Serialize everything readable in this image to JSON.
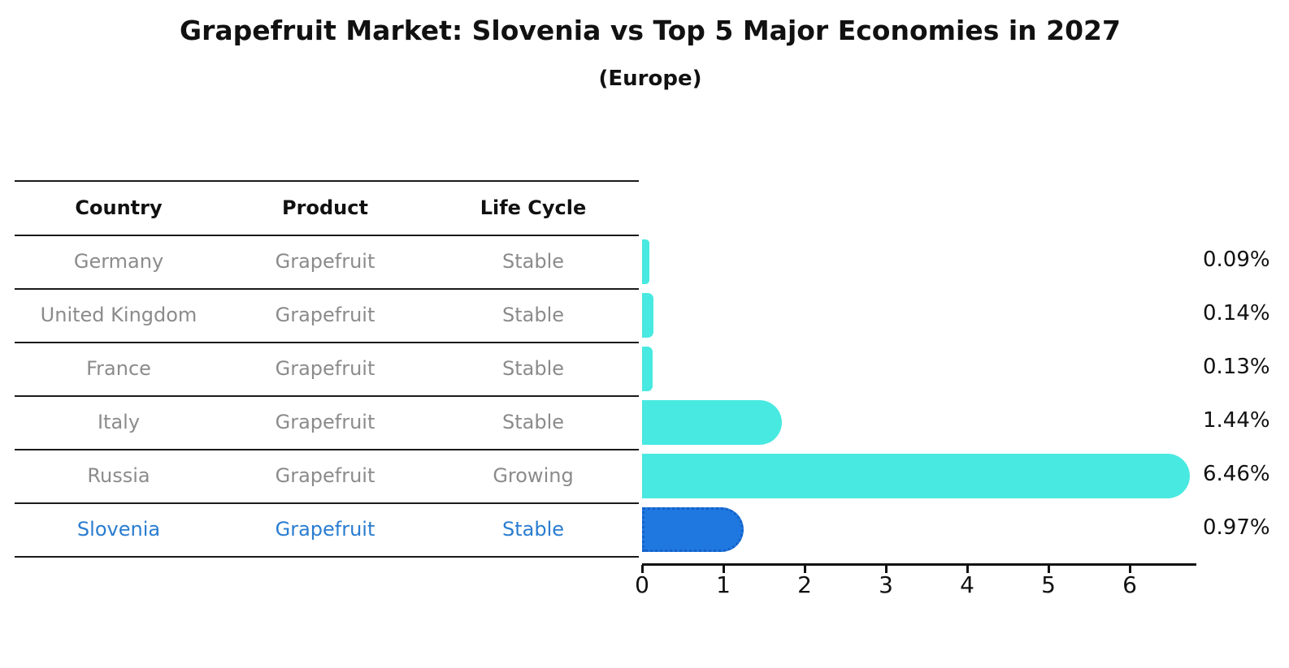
{
  "title": "Grapefruit Market: Slovenia vs Top 5 Major Economies in 2027",
  "subtitle": "(Europe)",
  "table": {
    "headers": [
      "Country",
      "Product",
      "Life Cycle"
    ],
    "rows": [
      {
        "country": "Germany",
        "product": "Grapefruit",
        "life_cycle": "Stable",
        "highlight": false
      },
      {
        "country": "United Kingdom",
        "product": "Grapefruit",
        "life_cycle": "Stable",
        "highlight": false
      },
      {
        "country": "France",
        "product": "Grapefruit",
        "life_cycle": "Stable",
        "highlight": false
      },
      {
        "country": "Italy",
        "product": "Grapefruit",
        "life_cycle": "Stable",
        "highlight": false
      },
      {
        "country": "Russia",
        "product": "Grapefruit",
        "life_cycle": "Growing",
        "highlight": false
      },
      {
        "country": "Slovenia",
        "product": "Grapefruit",
        "life_cycle": "Stable",
        "highlight": true
      }
    ]
  },
  "chart_data": {
    "type": "bar",
    "orientation": "horizontal",
    "title": "Grapefruit Market: Slovenia vs Top 5 Major Economies in 2027",
    "subtitle": "(Europe)",
    "categories": [
      "Germany",
      "United Kingdom",
      "France",
      "Italy",
      "Russia",
      "Slovenia"
    ],
    "values": [
      0.09,
      0.14,
      0.13,
      1.44,
      6.46,
      0.97
    ],
    "value_labels": [
      "0.09%",
      "0.14%",
      "0.13%",
      "1.44%",
      "6.46%",
      "0.97%"
    ],
    "xticks": [
      "0",
      "1",
      "2",
      "3",
      "4",
      "5",
      "6"
    ],
    "xlim": [
      0,
      6.8
    ],
    "grid": false,
    "legend": "none",
    "highlight_index": 5
  },
  "colors": {
    "bar": "#48e9e1",
    "highlight_bar": "#1f78e0",
    "highlight_border": "#1560c8",
    "highlight_text": "#2a7cd0",
    "text": "#111111",
    "muted_text": "#8b8b8b"
  }
}
